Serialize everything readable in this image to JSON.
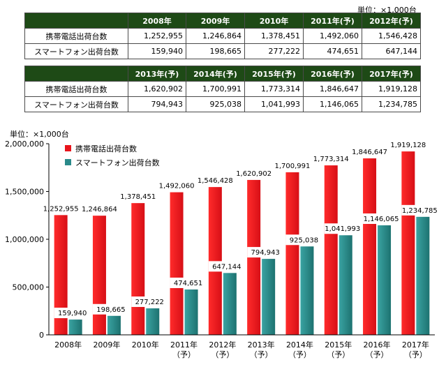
{
  "unit_label": "単位：×1,000台",
  "tables": [
    {
      "headers": [
        "2008年",
        "2009年",
        "2010年",
        "2011年(予)",
        "2012年(予)"
      ],
      "rows": [
        {
          "label": "携帯電話出荷台数",
          "cells": [
            "1,252,955",
            "1,246,864",
            "1,378,451",
            "1,492,060",
            "1,546,428"
          ]
        },
        {
          "label": "スマートフォン出荷台数",
          "cells": [
            "159,940",
            "198,665",
            "277,222",
            "474,651",
            "647,144"
          ]
        }
      ]
    },
    {
      "headers": [
        "2013年(予)",
        "2014年(予)",
        "2015年(予)",
        "2016年(予)",
        "2017年(予)"
      ],
      "rows": [
        {
          "label": "携帯電話出荷台数",
          "cells": [
            "1,620,902",
            "1,700,991",
            "1,773,314",
            "1,846,647",
            "1,919,128"
          ]
        },
        {
          "label": "スマートフォン出荷台数",
          "cells": [
            "794,943",
            "925,038",
            "1,041,993",
            "1,146,065",
            "1,234,785"
          ]
        }
      ]
    }
  ],
  "chart_data": {
    "type": "bar",
    "unit_label": "単位：×1,000台",
    "categories": [
      [
        "2008年"
      ],
      [
        "2009年"
      ],
      [
        "2010年"
      ],
      [
        "2011年",
        "（予）"
      ],
      [
        "2012年",
        "（予）"
      ],
      [
        "2013年",
        "（予）"
      ],
      [
        "2014年",
        "（予）"
      ],
      [
        "2015年",
        "（予）"
      ],
      [
        "2016年",
        "（予）"
      ],
      [
        "2017年",
        "（予）"
      ]
    ],
    "series": [
      {
        "name": "携帯電話出荷台数",
        "color": "#e8141b",
        "values": [
          1252955,
          1246864,
          1378451,
          1492060,
          1546428,
          1620902,
          1700991,
          1773314,
          1846647,
          1919128
        ],
        "labels": [
          "1,252,955",
          "1,246,864",
          "1,378,451",
          "1,492,060",
          "1,546,428",
          "1,620,902",
          "1,700,991",
          "1,773,314",
          "1,846,647",
          "1,919,128"
        ]
      },
      {
        "name": "スマートフォン出荷台数",
        "color": "#2a8a8a",
        "values": [
          159940,
          198665,
          277222,
          474651,
          647144,
          794943,
          925038,
          1041993,
          1146065,
          1234785
        ],
        "labels": [
          "159,940",
          "198,665",
          "277,222",
          "474,651",
          "647,144",
          "794,943",
          "925,038",
          "1,041,993",
          "1,146,065",
          "1,234,785"
        ]
      }
    ],
    "ylim": [
      0,
      2000000
    ],
    "yticks": [
      0,
      500000,
      1000000,
      1500000,
      2000000
    ],
    "ytick_labels": [
      "0",
      "500,000",
      "1,000,000",
      "1,500,000",
      "2,000,000"
    ],
    "legend": "top-left",
    "grid": false
  }
}
